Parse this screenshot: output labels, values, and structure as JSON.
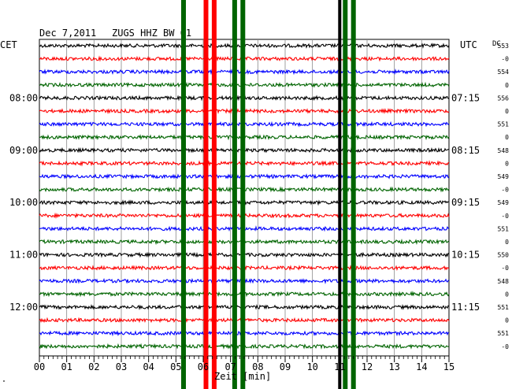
{
  "header": {
    "date": "Dec 7,2011",
    "station": "ZUGS HHZ BW 01"
  },
  "labels": {
    "left_timezone": "CET",
    "right_timezone": "UTC",
    "dc": "DC",
    "corner_mark": "\""
  },
  "chart_data": {
    "type": "line",
    "title": "Dec 7,2011   ZUGS HHZ BW 01",
    "xlabel": "Zeit [min]",
    "ylabel": "",
    "xlim": [
      0,
      15
    ],
    "x_ticks": [
      "00",
      "01",
      "02",
      "03",
      "04",
      "05",
      "06",
      "07",
      "08",
      "09",
      "10",
      "11",
      "12",
      "13",
      "14",
      "15"
    ],
    "grid": true,
    "trace_colors": [
      "#000000",
      "#ff0000",
      "#0000ff",
      "#006400"
    ],
    "left_time_labels": [
      {
        "row": 4,
        "text": "08:00"
      },
      {
        "row": 8,
        "text": "09:00"
      },
      {
        "row": 12,
        "text": "10:00"
      },
      {
        "row": 16,
        "text": "11:00"
      },
      {
        "row": 20,
        "text": "12:00"
      }
    ],
    "right_time_labels": [
      {
        "row": 4,
        "text": "07:15"
      },
      {
        "row": 8,
        "text": "08:15"
      },
      {
        "row": 12,
        "text": "09:15"
      },
      {
        "row": 16,
        "text": "10:15"
      },
      {
        "row": 20,
        "text": "11:15"
      }
    ],
    "dc_values": [
      "553",
      "-0",
      "554",
      "0",
      "556",
      "0",
      "551",
      "0",
      "548",
      "0",
      "549",
      "-0",
      "549",
      "-0",
      "551",
      "0",
      "550",
      "-0",
      "548",
      "0",
      "551",
      "0",
      "551",
      "-0"
    ],
    "traces": 24,
    "events": [
      {
        "x_min": 5.28,
        "color": "#006400",
        "full_height": true
      },
      {
        "x_min": 6.1,
        "color": "#ff0000",
        "full_height": true
      },
      {
        "x_min": 6.4,
        "color": "#ff0000",
        "full_height": true
      },
      {
        "x_min": 7.15,
        "color": "#006400",
        "full_height": true
      },
      {
        "x_min": 7.45,
        "color": "#006400",
        "full_height": true
      },
      {
        "x_min": 11.0,
        "color": "#000000",
        "full_height": true
      },
      {
        "x_min": 11.2,
        "color": "#006400",
        "full_height": true
      },
      {
        "x_min": 11.5,
        "color": "#006400",
        "full_height": true
      }
    ]
  }
}
